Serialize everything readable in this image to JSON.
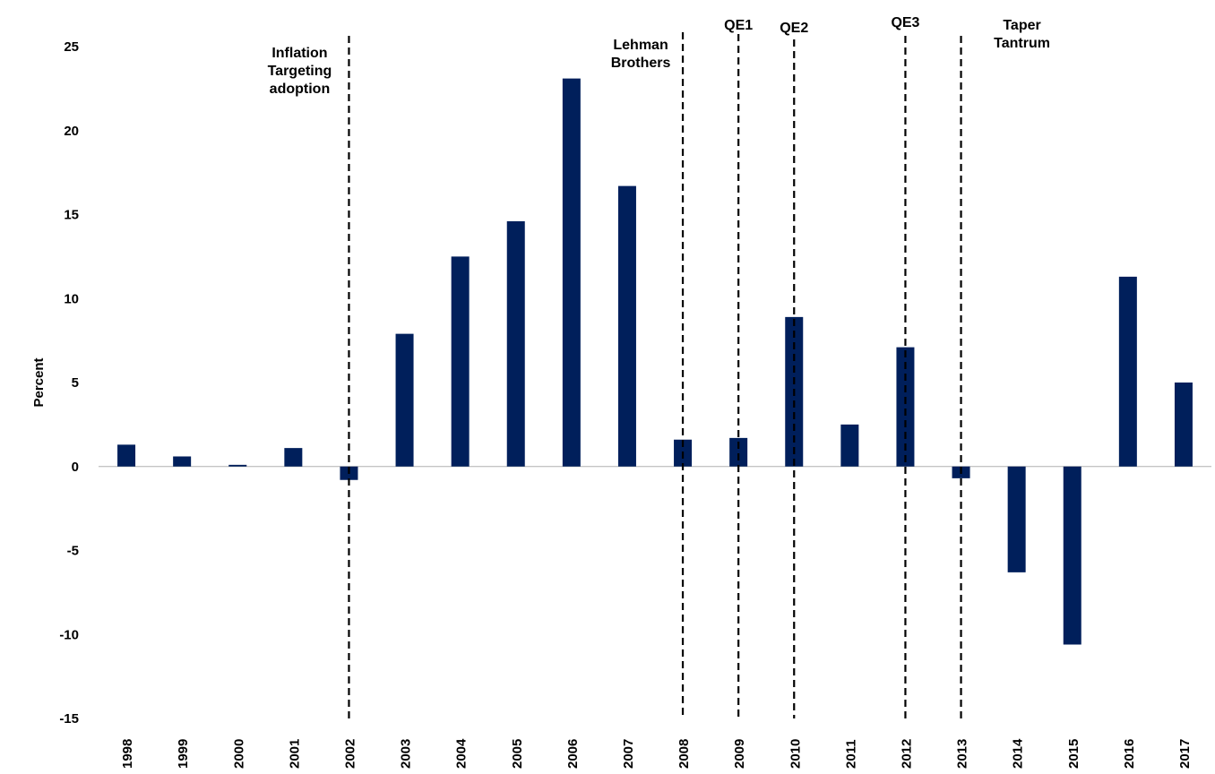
{
  "chart_data": {
    "type": "bar",
    "title": "",
    "xlabel": "",
    "ylabel": "Percent",
    "ylim": [
      -15,
      25
    ],
    "yticks": [
      "25",
      "20",
      "15",
      "10",
      "5",
      "0",
      "-5",
      "-10",
      "-15"
    ],
    "grid": false,
    "legend": "none",
    "categories": [
      "1998",
      "1999",
      "2000",
      "2001",
      "2002",
      "2003",
      "2004",
      "2005",
      "2006",
      "2007",
      "2008",
      "2009",
      "2010",
      "2011",
      "2012",
      "2013",
      "2014",
      "2015",
      "2016",
      "2017"
    ],
    "values": [
      1.3,
      0.6,
      0.1,
      1.1,
      -0.8,
      7.9,
      12.5,
      14.6,
      23.1,
      16.7,
      1.6,
      1.7,
      8.9,
      2.5,
      7.1,
      -0.7,
      -6.3,
      -10.6,
      11.3,
      5.0
    ],
    "bar_color": "#001f5b",
    "annotations": [
      {
        "id": "inflation-targeting",
        "lines": [
          "Inflation",
          "Targeting",
          "adoption"
        ],
        "at_category": "2002"
      },
      {
        "id": "lehman",
        "lines": [
          "Lehman",
          "Brothers"
        ],
        "at_category": "2008"
      },
      {
        "id": "qe1",
        "lines": [
          "QE1"
        ],
        "at_category": "2009"
      },
      {
        "id": "qe2",
        "lines": [
          "QE2"
        ],
        "at_category": "2010"
      },
      {
        "id": "qe3",
        "lines": [
          "QE3"
        ],
        "at_category": "2012"
      },
      {
        "id": "taper-tantrum",
        "lines": [
          "Taper",
          "Tantrum"
        ],
        "at_category": "2013"
      }
    ]
  }
}
